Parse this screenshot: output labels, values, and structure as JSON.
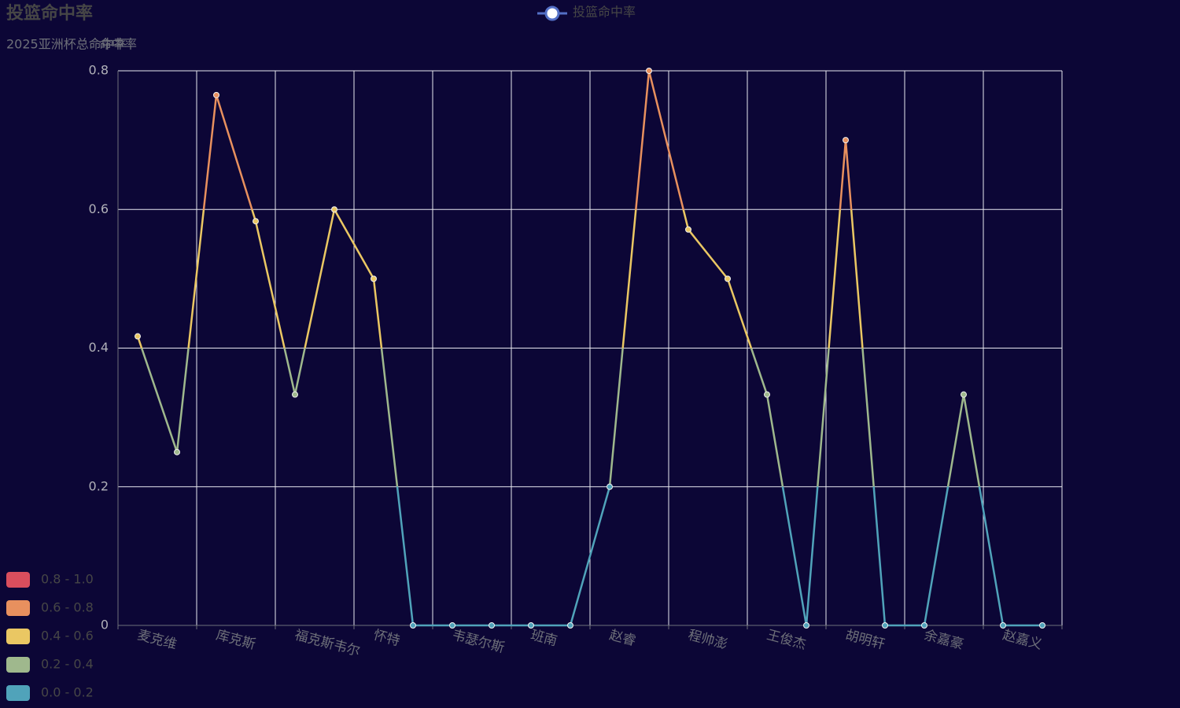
{
  "chart_data": {
    "type": "line",
    "title": "投篮命中率",
    "subtitle": "2025亚洲杯总命中率",
    "y_axis_label": "命中率",
    "categories": [
      "麦克维",
      null,
      "库克斯",
      null,
      "福克斯韦尔",
      null,
      "怀特",
      null,
      "韦瑟尔斯",
      null,
      "班南",
      null,
      "赵睿",
      null,
      "程帅澎",
      null,
      "王俊杰",
      null,
      "胡明轩",
      null,
      "余嘉豪",
      null,
      "赵嘉义",
      null
    ],
    "series": [
      {
        "name": "投篮命中率",
        "color": "#5470c6",
        "values": [
          0.417,
          0.25,
          0.765,
          0.583,
          0.333,
          0.6,
          0.5,
          0,
          0,
          0,
          0,
          0,
          0.2,
          0.8,
          0.571,
          0.5,
          0.333,
          0,
          0.7,
          0,
          0,
          0.333,
          0,
          0
        ]
      }
    ],
    "ylim": [
      0,
      0.8
    ],
    "yticks": [
      0,
      0.2,
      0.4,
      0.6,
      0.8
    ],
    "grid": true,
    "legend": "top",
    "visual_map": {
      "position": "bottom-left",
      "pieces": [
        {
          "min": 0.8,
          "max": 1.0,
          "label": "0.8 - 1.0",
          "color": "#d94e5d"
        },
        {
          "min": 0.6,
          "max": 0.8,
          "label": "0.6 - 0.8",
          "color": "#e8905e"
        },
        {
          "min": 0.4,
          "max": 0.6,
          "label": "0.4 - 0.6",
          "color": "#eac763"
        },
        {
          "min": 0.2,
          "max": 0.4,
          "label": "0.2 - 0.4",
          "color": "#9fb88d"
        },
        {
          "min": 0,
          "max": 0.2,
          "label": "0.0 - 0.2",
          "color": "#50a3ba"
        }
      ]
    }
  }
}
